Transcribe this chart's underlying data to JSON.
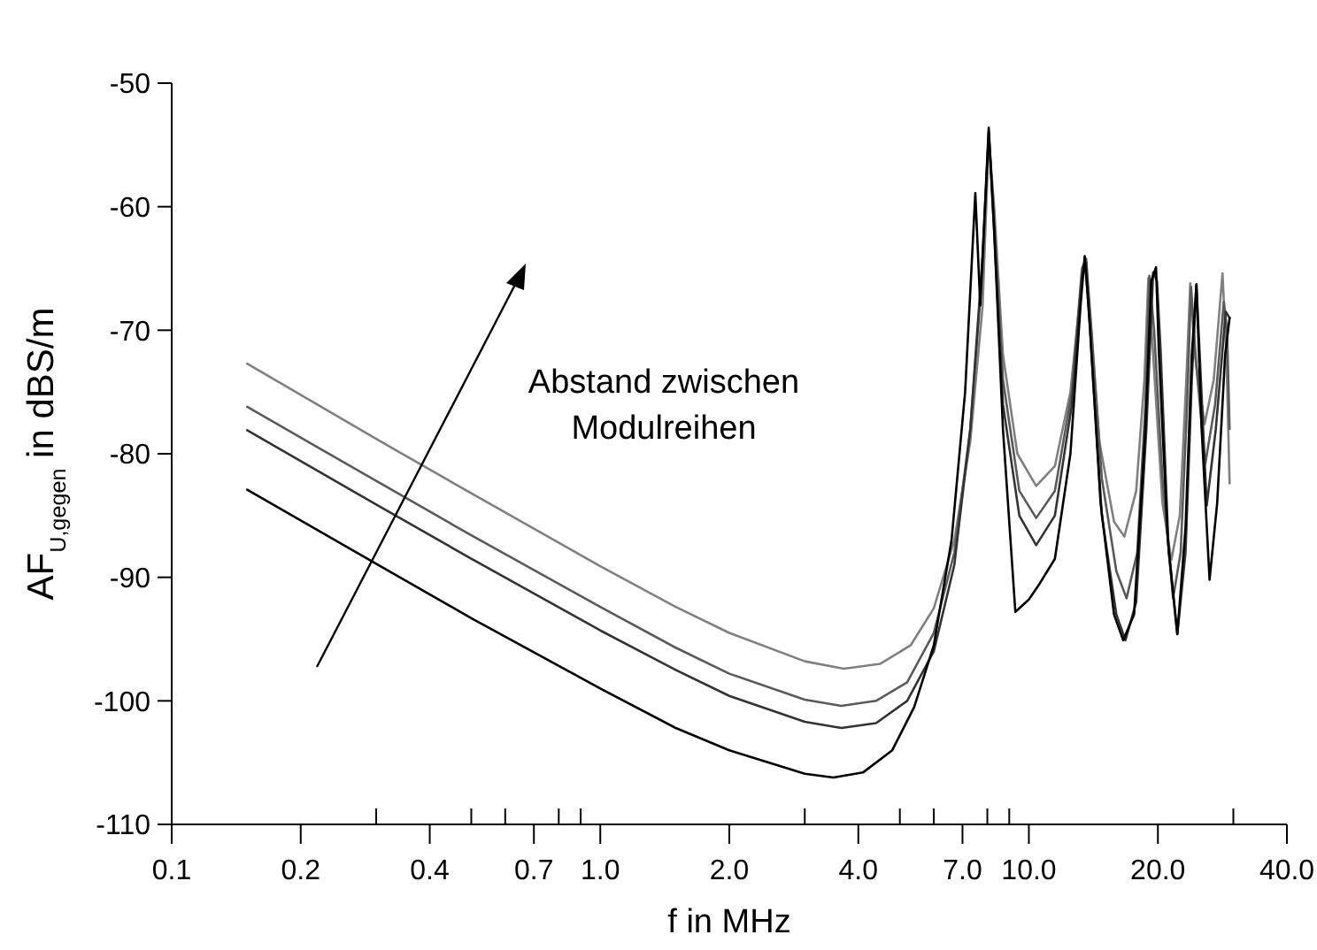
{
  "chart_data": {
    "type": "line",
    "xlabel": "f in MHz",
    "ylabel": "AF$_{U,gegen}$ in dBS/m",
    "log": "x",
    "grid": false,
    "marker": "none",
    "line_style": "solid",
    "xlim": [
      0.1,
      40
    ],
    "ylim": [
      -110,
      -50
    ],
    "xticks": [
      {
        "value": 0.1,
        "label": "0.1"
      },
      {
        "value": 0.2,
        "label": "0.2"
      },
      {
        "value": 0.3,
        "label": null
      },
      {
        "value": 0.4,
        "label": "0.4"
      },
      {
        "value": 0.5,
        "label": null
      },
      {
        "value": 0.6,
        "label": null
      },
      {
        "value": 0.7,
        "label": "0.7"
      },
      {
        "value": 0.8,
        "label": null
      },
      {
        "value": 0.9,
        "label": null
      },
      {
        "value": 1,
        "label": "1.0"
      },
      {
        "value": 2,
        "label": "2.0"
      },
      {
        "value": 3,
        "label": null
      },
      {
        "value": 4,
        "label": "4.0"
      },
      {
        "value": 5,
        "label": null
      },
      {
        "value": 6,
        "label": null
      },
      {
        "value": 7,
        "label": "7.0"
      },
      {
        "value": 8,
        "label": null
      },
      {
        "value": 9,
        "label": null
      },
      {
        "value": 10,
        "label": "10.0"
      },
      {
        "value": 20,
        "label": "20.0"
      },
      {
        "value": 30,
        "label": null
      },
      {
        "value": 40,
        "label": "40.0"
      }
    ],
    "yticks": [
      -110,
      -100,
      -90,
      -80,
      -70,
      -60,
      -50
    ],
    "annotations": [
      "Abstand zwischen\nModulreihen"
    ],
    "series": [
      {
        "color": "#808080",
        "x": [
          0.15,
          0.3,
          0.5,
          1.0,
          1.5,
          2.0,
          3.0,
          3.7,
          4.5,
          5.3,
          6.0,
          6.7,
          7.3,
          7.8,
          8.06,
          8.3,
          8.7,
          9.4,
          10.4,
          11.5,
          12.5,
          13.2,
          13.5,
          13.9,
          14.6,
          15.8,
          16.7,
          17.8,
          18.6,
          19.0,
          19.5,
          20.5,
          21.5,
          22.5,
          23.3,
          23.8,
          24.4,
          25.7,
          27,
          28.3,
          28.9,
          29.4
        ],
        "values": [
          -72.7,
          -78.8,
          -83.2,
          -89.1,
          -92.4,
          -94.5,
          -96.8,
          -97.4,
          -97.0,
          -95.5,
          -92.5,
          -87,
          -79,
          -68,
          -54.5,
          -60,
          -72,
          -80,
          -82.6,
          -81,
          -75,
          -67,
          -64.5,
          -69,
          -79,
          -85.5,
          -86.7,
          -83,
          -74,
          -65.8,
          -72,
          -84,
          -88.6,
          -85,
          -74,
          -66.2,
          -72,
          -77.6,
          -74,
          -65.4,
          -72,
          -82.4
        ]
      },
      {
        "color": "#5a5a5a",
        "x": [
          0.15,
          0.3,
          0.5,
          1.0,
          1.5,
          2.0,
          3.0,
          3.65,
          4.4,
          5.2,
          6.0,
          6.7,
          7.3,
          7.8,
          8.06,
          8.3,
          8.7,
          9.5,
          10.4,
          11.5,
          12.6,
          13.3,
          13.6,
          14.0,
          14.8,
          16,
          16.9,
          17.9,
          18.7,
          19.1,
          19.6,
          20.5,
          21.7,
          22.6,
          23.4,
          23.9,
          24.6,
          25.8,
          27.2,
          28.5,
          29.0,
          29.4
        ],
        "values": [
          -76.2,
          -82.2,
          -86.6,
          -92.4,
          -95.7,
          -97.8,
          -99.9,
          -100.4,
          -100.0,
          -98.5,
          -94.5,
          -88,
          -78,
          -65,
          -54,
          -61,
          -74,
          -83,
          -85.2,
          -83,
          -75,
          -65,
          -64.2,
          -70,
          -82,
          -89.5,
          -91.7,
          -88,
          -76,
          -65.6,
          -70,
          -82,
          -91.7,
          -88,
          -76,
          -66.5,
          -73,
          -80.8,
          -76,
          -67.7,
          -70,
          -78
        ]
      },
      {
        "color": "#333333",
        "x": [
          0.15,
          0.3,
          0.5,
          1.0,
          1.5,
          2.0,
          3.0,
          3.65,
          4.4,
          5.2,
          6.0,
          6.7,
          7.3,
          7.8,
          8.06,
          8.3,
          8.7,
          9.5,
          10.4,
          11.5,
          12.6,
          13.3,
          13.6,
          14.0,
          14.8,
          16,
          16.8,
          17.8,
          18.8,
          19.5,
          19.9,
          20.3,
          21.2,
          22.2,
          23.2,
          24.0,
          24.6,
          25.2,
          26.0,
          27.3,
          28.8,
          29.4
        ],
        "values": [
          -78.1,
          -84.1,
          -88.5,
          -94.3,
          -97.5,
          -99.6,
          -101.7,
          -102.2,
          -101.8,
          -100,
          -96,
          -89,
          -78,
          -64,
          -54,
          -62,
          -76,
          -85,
          -87.4,
          -85,
          -76,
          -65.5,
          -64.5,
          -72,
          -85,
          -93,
          -95.1,
          -92,
          -78,
          -65.3,
          -66,
          -71.7,
          -88,
          -94.6,
          -88,
          -74,
          -66.3,
          -74,
          -84.2,
          -78,
          -68.5,
          -69
        ]
      },
      {
        "color": "#000000",
        "x": [
          0.15,
          0.3,
          0.5,
          1.0,
          1.5,
          2.0,
          3.0,
          3.5,
          4.1,
          4.8,
          5.4,
          6.0,
          6.6,
          7.1,
          7.5,
          7.7,
          8.06,
          8.3,
          8.7,
          9.3,
          10.0,
          10.6,
          11.5,
          12.5,
          13.2,
          13.5,
          13.9,
          14.7,
          15.8,
          16.6,
          17.6,
          18.7,
          19.3,
          19.8,
          20.1,
          21.1,
          22.2,
          23.2,
          24.0,
          24.6,
          25.3,
          26.4,
          27.5,
          28.7,
          29.4
        ],
        "values": [
          -82.9,
          -88.9,
          -93.3,
          -99.0,
          -102.2,
          -104.0,
          -105.9,
          -106.2,
          -105.8,
          -104,
          -100.5,
          -95.5,
          -87,
          -75,
          -58.9,
          -68,
          -53.6,
          -62,
          -78,
          -92.8,
          -91.8,
          -90.5,
          -88.5,
          -80,
          -68,
          -64,
          -70,
          -84,
          -93,
          -95.1,
          -93,
          -78,
          -66,
          -64.9,
          -71.7,
          -87,
          -94.6,
          -86,
          -72,
          -66.3,
          -78,
          -90.2,
          -84,
          -72,
          -69
        ]
      }
    ]
  }
}
